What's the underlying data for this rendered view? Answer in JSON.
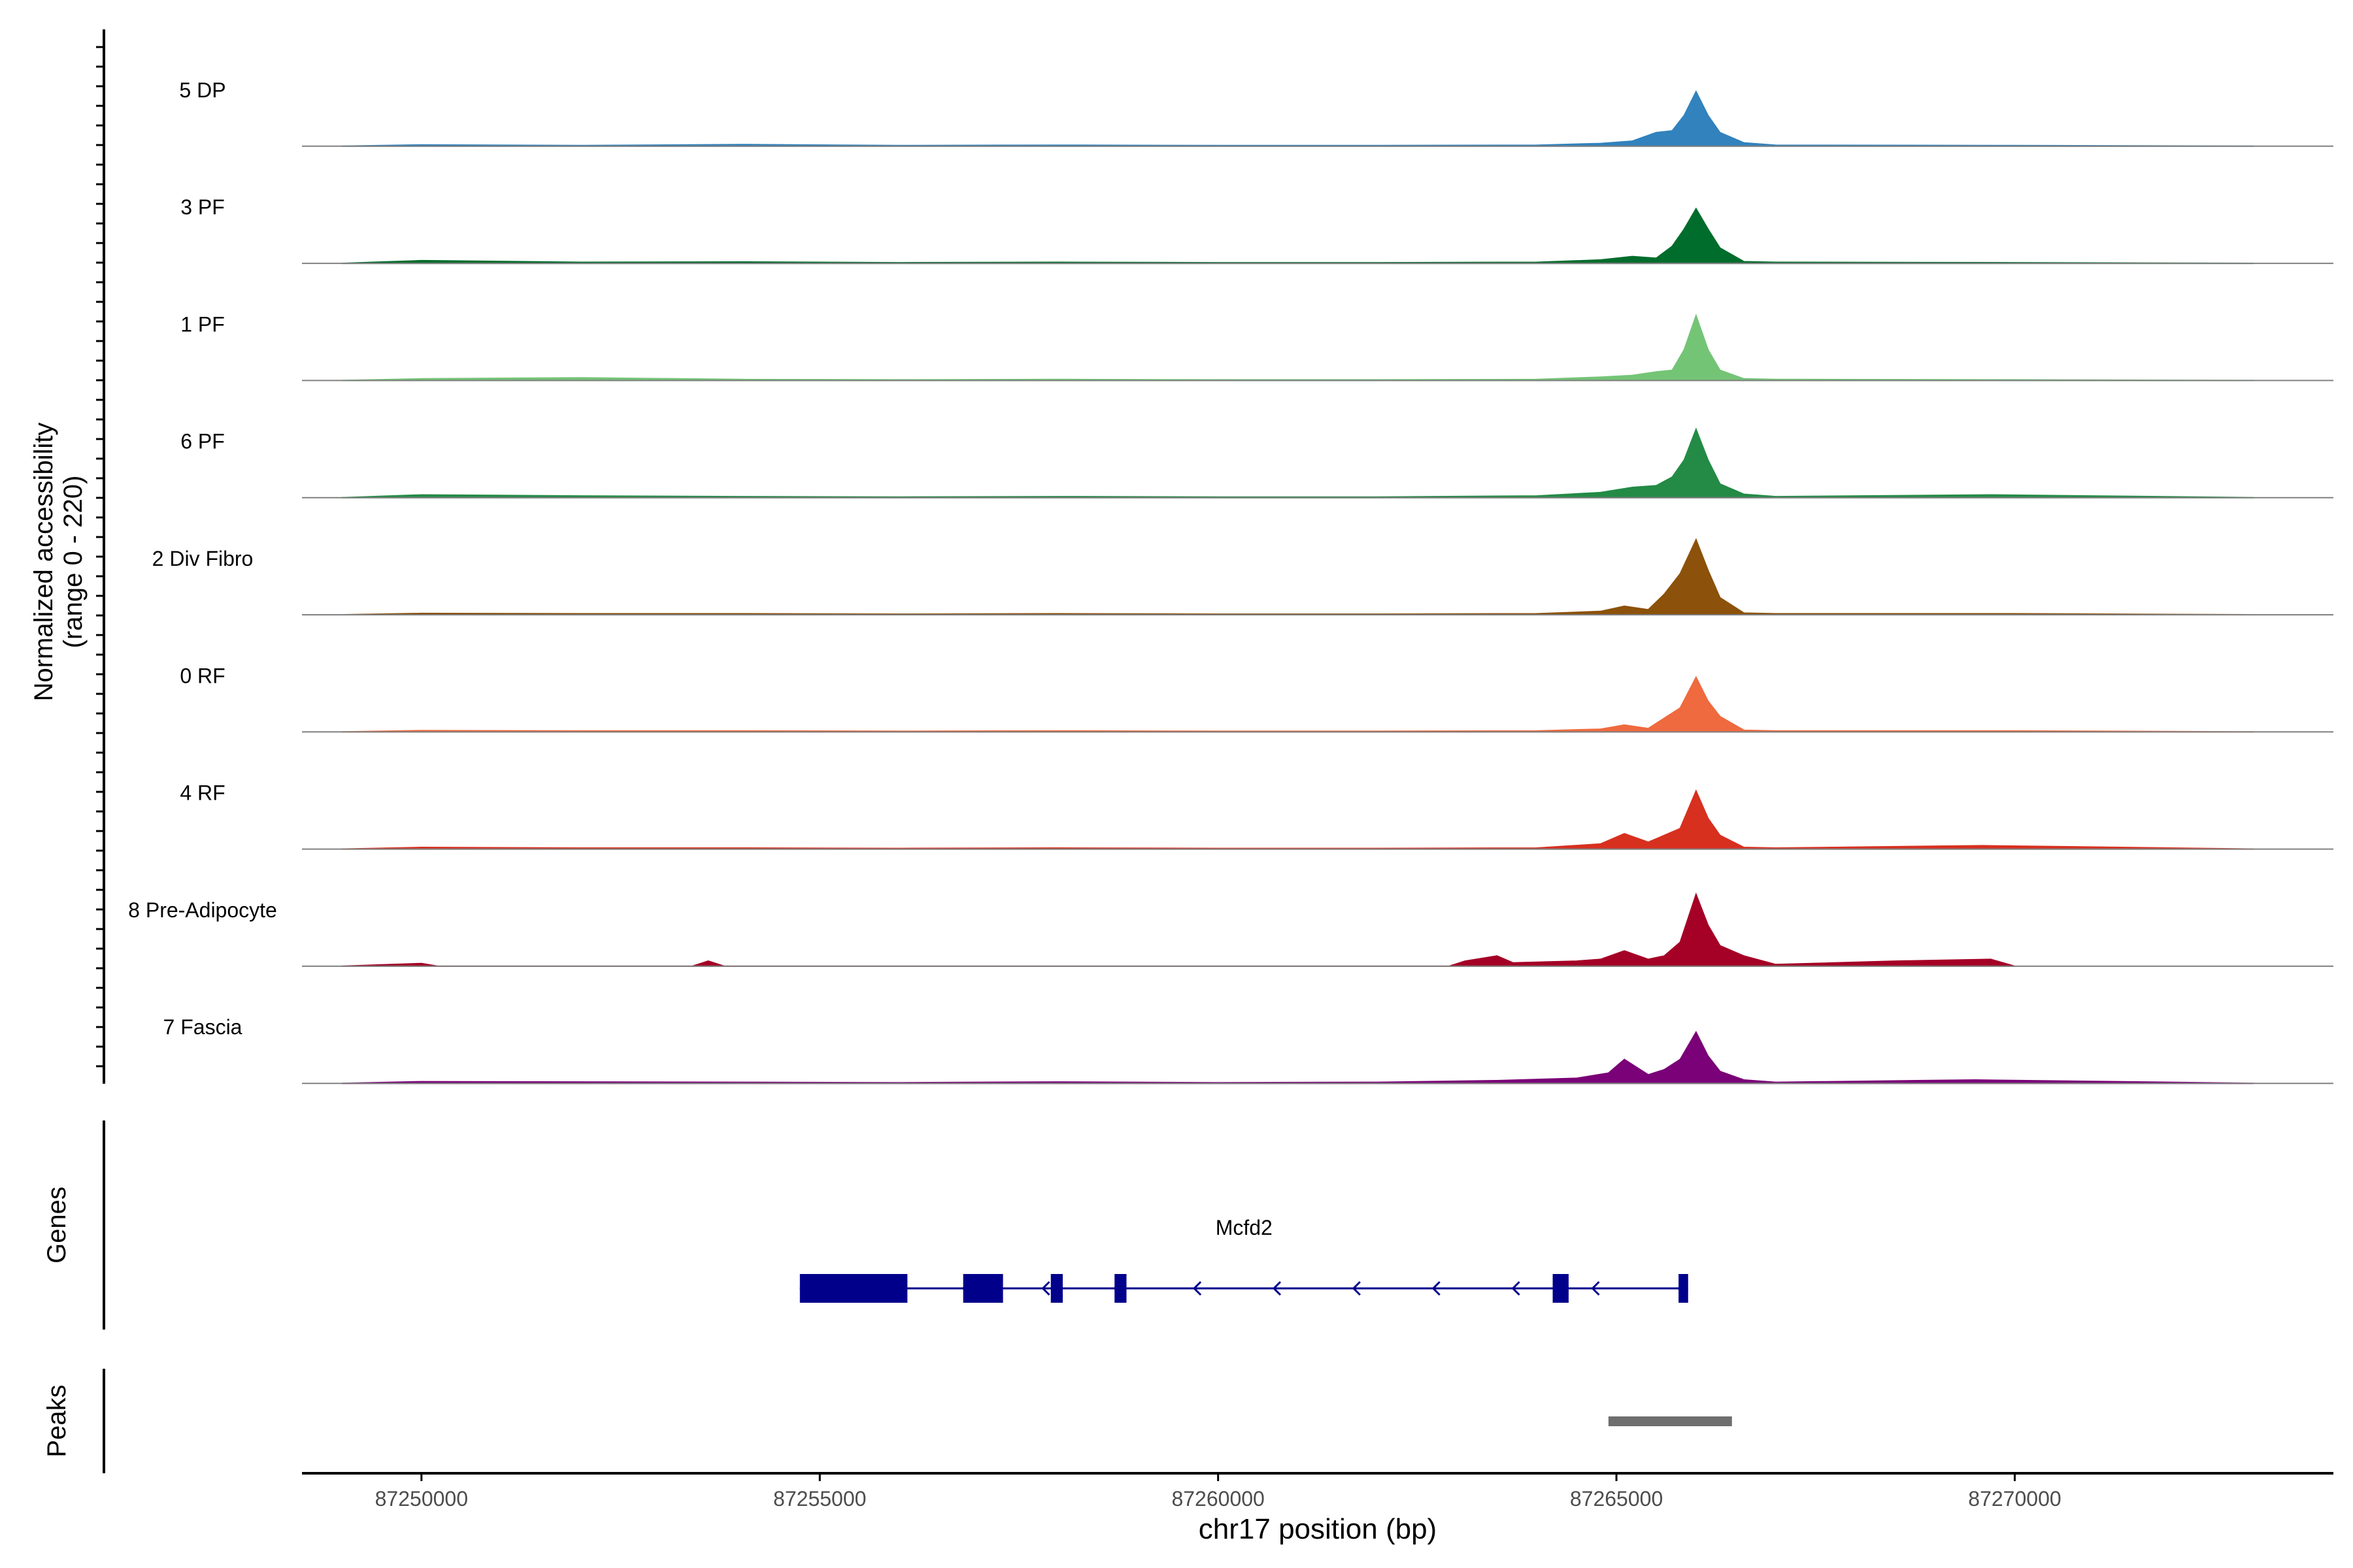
{
  "chart_data": [
    {
      "panel": "coverage",
      "type": "area",
      "ylabel": [
        "Normalized accessibility",
        "(range 0 - 220)"
      ],
      "ylim": [
        0,
        220
      ],
      "xlim": [
        87248500,
        87274000
      ],
      "series": [
        {
          "name": "5 DP",
          "color": "#3182bd",
          "x": [
            87249000,
            87250000,
            87252000,
            87254000,
            87256000,
            87258000,
            87260000,
            87262000,
            87264000,
            87264800,
            87265200,
            87265500,
            87265700,
            87265850,
            87266000,
            87266150,
            87266300,
            87266600,
            87267000,
            87270000,
            87273000
          ],
          "y": [
            0,
            4,
            2,
            5,
            2,
            3,
            2,
            2,
            3,
            8,
            15,
            40,
            45,
            90,
            160,
            90,
            40,
            10,
            3,
            2,
            0
          ]
        },
        {
          "name": "3 PF",
          "color": "#006d2c",
          "x": [
            87249000,
            87250000,
            87252000,
            87254000,
            87256000,
            87258000,
            87260000,
            87262000,
            87264000,
            87264800,
            87265200,
            87265500,
            87265700,
            87265850,
            87266000,
            87266150,
            87266300,
            87266600,
            87267000,
            87270000,
            87273000
          ],
          "y": [
            0,
            8,
            3,
            4,
            2,
            3,
            2,
            2,
            3,
            10,
            20,
            15,
            50,
            100,
            160,
            100,
            45,
            5,
            3,
            2,
            0
          ]
        },
        {
          "name": "1 PF",
          "color": "#74c476",
          "x": [
            87249000,
            87250000,
            87252000,
            87254000,
            87256000,
            87258000,
            87260000,
            87262000,
            87264000,
            87264800,
            87265200,
            87265500,
            87265700,
            87265850,
            87266000,
            87266150,
            87266300,
            87266600,
            87267000,
            87270000,
            87273000
          ],
          "y": [
            0,
            5,
            8,
            3,
            2,
            3,
            2,
            2,
            3,
            10,
            15,
            25,
            30,
            90,
            190,
            90,
            30,
            5,
            3,
            2,
            0
          ]
        },
        {
          "name": "6 PF",
          "color": "#238b45",
          "x": [
            87249000,
            87250000,
            87252000,
            87254000,
            87256000,
            87258000,
            87260000,
            87262000,
            87264000,
            87264800,
            87265200,
            87265500,
            87265700,
            87265850,
            87266000,
            87266150,
            87266300,
            87266600,
            87267000,
            87269700,
            87273000
          ],
          "y": [
            0,
            8,
            5,
            3,
            2,
            3,
            2,
            2,
            5,
            15,
            30,
            35,
            60,
            110,
            200,
            110,
            40,
            10,
            3,
            8,
            0
          ]
        },
        {
          "name": "2 Div Fibro",
          "color": "#8c510a",
          "x": [
            87249000,
            87250000,
            87252000,
            87254000,
            87256000,
            87258000,
            87260000,
            87262000,
            87264000,
            87264800,
            87265100,
            87265400,
            87265600,
            87265800,
            87266000,
            87266150,
            87266300,
            87266600,
            87267000,
            87270000,
            87273000
          ],
          "y": [
            0,
            4,
            3,
            3,
            2,
            3,
            2,
            2,
            3,
            10,
            25,
            15,
            60,
            120,
            220,
            130,
            50,
            5,
            3,
            3,
            0
          ]
        },
        {
          "name": "0 RF",
          "color": "#ef6a3e",
          "x": [
            87249000,
            87250000,
            87252000,
            87254000,
            87256000,
            87258000,
            87260000,
            87262000,
            87264000,
            87264800,
            87265100,
            87265400,
            87265600,
            87265800,
            87266000,
            87266150,
            87266300,
            87266600,
            87267000,
            87270000,
            87273000
          ],
          "y": [
            0,
            4,
            3,
            3,
            2,
            3,
            2,
            2,
            3,
            8,
            20,
            10,
            40,
            70,
            160,
            90,
            45,
            5,
            3,
            3,
            0
          ]
        },
        {
          "name": "4 RF",
          "color": "#d7301f",
          "x": [
            87249000,
            87250000,
            87252000,
            87254000,
            87256000,
            87258000,
            87260000,
            87262000,
            87264000,
            87264800,
            87265100,
            87265400,
            87265600,
            87265800,
            87266000,
            87266150,
            87266300,
            87266600,
            87267000,
            87269600,
            87273000
          ],
          "y": [
            0,
            5,
            3,
            3,
            2,
            3,
            2,
            2,
            3,
            15,
            45,
            20,
            40,
            60,
            170,
            90,
            40,
            5,
            3,
            10,
            0
          ]
        },
        {
          "name": "8 Pre-Adipocyte",
          "color": "#a50026",
          "x": [
            87249000,
            87250000,
            87250200,
            87253400,
            87253600,
            87253800,
            87262900,
            87263100,
            87263500,
            87263700,
            87264500,
            87264800,
            87265100,
            87265400,
            87265600,
            87265800,
            87266000,
            87266150,
            87266300,
            87266600,
            87267000,
            87268500,
            87269700,
            87270000
          ],
          "y": [
            0,
            8,
            0,
            0,
            15,
            0,
            0,
            15,
            30,
            10,
            15,
            20,
            45,
            20,
            30,
            70,
            210,
            120,
            60,
            30,
            5,
            15,
            20,
            0
          ]
        },
        {
          "name": "7 Fascia",
          "color": "#7a0177",
          "x": [
            87249000,
            87250000,
            87252000,
            87254000,
            87256000,
            87258000,
            87260000,
            87262000,
            87263500,
            87264500,
            87264900,
            87265100,
            87265400,
            87265600,
            87265800,
            87266000,
            87266150,
            87266300,
            87266600,
            87267000,
            87269500,
            87273000
          ],
          "y": [
            0,
            5,
            4,
            3,
            2,
            4,
            2,
            3,
            8,
            15,
            30,
            70,
            25,
            40,
            70,
            150,
            80,
            35,
            10,
            3,
            10,
            0
          ]
        }
      ]
    },
    {
      "panel": "genes",
      "type": "gene-model",
      "ylabel": "Genes",
      "gene": {
        "name": "Mcfd2",
        "strand": "-",
        "start": 87254750,
        "end": 87265900,
        "exons": [
          [
            87254750,
            87256100
          ],
          [
            87256800,
            87257300
          ],
          [
            87257900,
            87258050
          ],
          [
            87258700,
            87258850
          ],
          [
            87264200,
            87264400
          ],
          [
            87265780,
            87265900
          ]
        ],
        "arrows": [
          87256800,
          87257800,
          87258700,
          87259700,
          87260700,
          87261700,
          87262700,
          87263700,
          87264700,
          87265780
        ]
      }
    },
    {
      "panel": "peaks",
      "type": "interval",
      "ylabel": "Peaks",
      "intervals": [
        [
          87264900,
          87266450
        ]
      ],
      "color": "#6e6e6e",
      "xlabel": "chr17 position (bp)",
      "xticks": [
        87250000,
        87255000,
        87260000,
        87265000,
        87270000
      ],
      "xtick_labels": [
        "87250000",
        "87255000",
        "87260000",
        "87265000",
        "87270000"
      ]
    }
  ]
}
